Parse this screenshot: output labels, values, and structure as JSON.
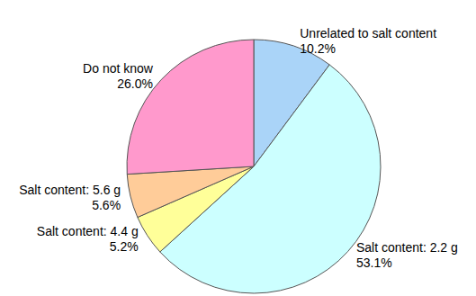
{
  "chart_data": {
    "type": "pie",
    "categories": [
      "Unrelated to salt content",
      "Salt content: 2.2 g",
      "Salt content: 4.4 g",
      "Salt content: 5.6 g",
      "Do not know"
    ],
    "values": [
      10.2,
      53.1,
      5.2,
      5.6,
      26.0
    ],
    "value_labels": [
      "10.2%",
      "53.1%",
      "5.2%",
      "5.6%",
      "26.0%"
    ],
    "colors": [
      "#aad4f8",
      "#ccffff",
      "#ffff99",
      "#ffcc99",
      "#ff99cc"
    ],
    "data_labels": true
  }
}
